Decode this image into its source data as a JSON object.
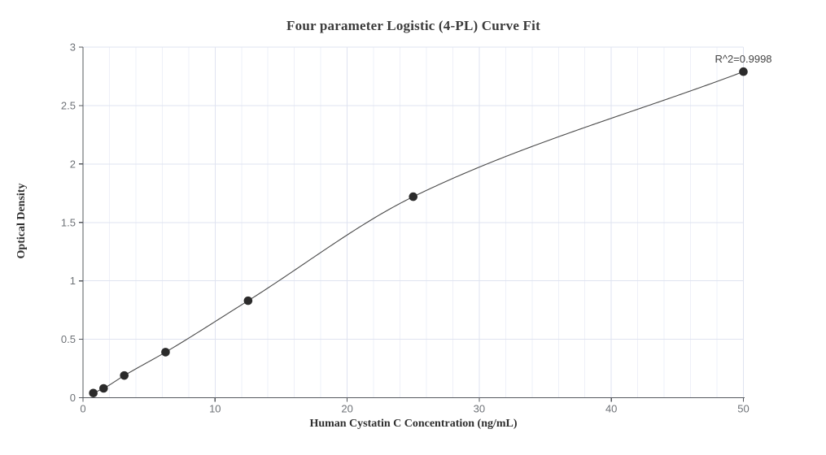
{
  "chart_data": {
    "type": "scatter",
    "title": "Four parameter Logistic (4-PL) Curve Fit",
    "xlabel": "Human Cystatin C Concentration (ng/mL)",
    "ylabel": "Optical Density",
    "annotation": "R^2=0.9998",
    "fit": "4-PL logistic curve drawn through all standard points",
    "x": [
      0.78,
      1.56,
      3.125,
      6.25,
      12.5,
      25,
      50
    ],
    "y": [
      0.04,
      0.08,
      0.19,
      0.39,
      0.83,
      1.72,
      2.79
    ],
    "xlim": [
      0,
      50
    ],
    "ylim": [
      0,
      3
    ],
    "x_major_ticks": [
      0,
      10,
      20,
      30,
      40,
      50
    ],
    "x_tick_labels": [
      "0",
      "10",
      "20",
      "30",
      "40",
      "50"
    ],
    "x_minor_step": 2,
    "y_major_ticks": [
      0,
      0.5,
      1,
      1.5,
      2,
      2.5,
      3
    ],
    "y_tick_labels": [
      "0",
      "0.5",
      "1",
      "1.5",
      "2",
      "2.5",
      "3"
    ],
    "grid": {
      "x_minor": true,
      "x_major": true,
      "y_major": true,
      "y_minor": false
    },
    "legend": "none",
    "colors": {
      "point": "#2b2b2b",
      "curve": "#4a4a4a",
      "axis": "#55585e",
      "tick_label": "#6e7277",
      "grid_major": "#dfe3f0",
      "grid_minor": "#eef0f8",
      "background": "#ffffff"
    }
  }
}
